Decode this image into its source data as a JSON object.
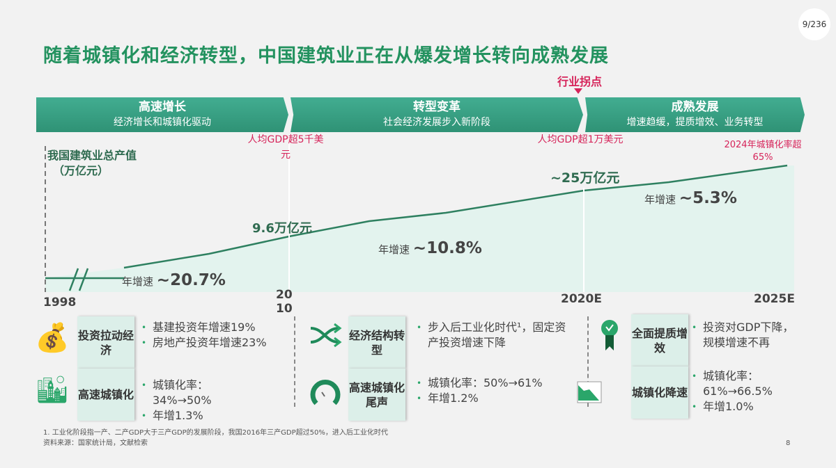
{
  "page_counter": "9/236",
  "title": "随着城镇化和经济转型，中国建筑业正在从爆发增长转向成熟发展",
  "turning_point": "行业拐点",
  "phases": [
    {
      "title": "高速增长",
      "subtitle": "经济增长和城镇化驱动"
    },
    {
      "title": "转型变革",
      "subtitle": "社会经济发展步入新阶段"
    },
    {
      "title": "成熟发展",
      "subtitle": "增速趋缓，提质增效、业务转型"
    }
  ],
  "chart_data": {
    "type": "area",
    "title": "我国建筑业总产值（万亿元）",
    "ylabel": "（万亿元）",
    "x_labels": [
      "1998",
      "2010",
      "2020E",
      "2025E"
    ],
    "value_labels": [
      "9.6万亿元",
      "~25万亿元"
    ],
    "growth": [
      {
        "label": "年增速",
        "value": "~20.7%"
      },
      {
        "label": "年增速",
        "value": "~10.8%"
      },
      {
        "label": "年增速",
        "value": "~5.3%"
      }
    ],
    "annotations": [
      "人均GDP超5千美元",
      "人均GDP超1万美元",
      "2024年城镇化率超65%"
    ]
  },
  "axis_title": "我国建筑业总产值",
  "axis_unit": "（万亿元）",
  "columns": [
    {
      "icon": "money-bag-icon",
      "card": "投资拉动经济",
      "bullets": [
        "基建投资年增速19%",
        "房地产投资年增速23%"
      ],
      "icon2": "city-buildings-icon",
      "card2": "高速城镇化",
      "bullets2": [
        "城镇化率：34%→50%",
        "年增1.3%"
      ]
    },
    {
      "icon": "shuffle-arrows-icon",
      "card": "经济结构转型",
      "bullets": [
        "步入后工业化时代¹，固定资产投资增速下降"
      ],
      "icon2": "gauge-icon",
      "card2": "高速城镇化尾声",
      "bullets2": [
        "城镇化率：50%→61%",
        "年增1.2%"
      ]
    },
    {
      "icon": "award-ribbon-icon",
      "card": "全面提质增效",
      "bullets": [
        "投资对GDP下降，规模增速不再"
      ],
      "icon2": "declining-chart-icon",
      "card2": "城镇化降速",
      "bullets2": [
        "城镇化率：61%→66.5%",
        "年增1.0%"
      ]
    }
  ],
  "footnote": "1. 工业化阶段指一产、二产GDP大于三产GDP的发展阶段，我国2016年三产GDP超过50%，进入后工业化时代",
  "source": "资料来源：国家统计局，文献检索",
  "slide_number": "8"
}
